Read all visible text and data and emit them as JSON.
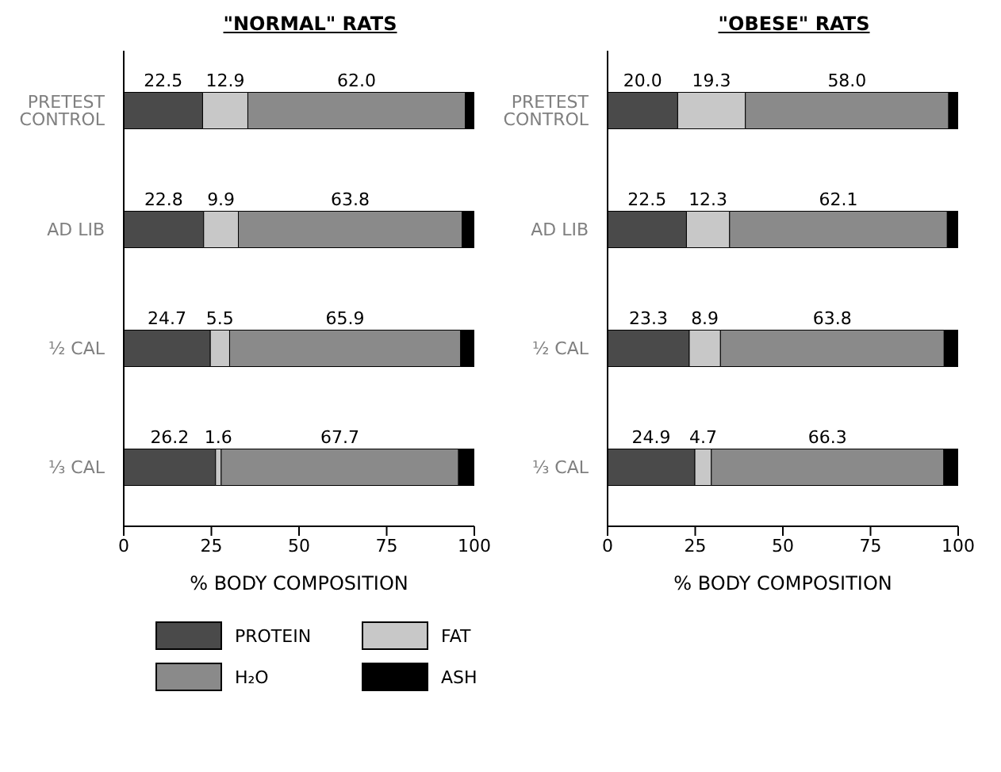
{
  "chart_data": [
    {
      "type": "bar",
      "title": "\"NORMAL\" RATS",
      "xlabel": "% BODY COMPOSITION",
      "orientation": "horizontal",
      "stacked": true,
      "categories": [
        "PRETEST CONTROL",
        "AD LIB",
        "½ CAL",
        "⅓ CAL"
      ],
      "xlim": [
        0,
        100
      ],
      "xticks": [
        0,
        25,
        50,
        75,
        100
      ],
      "grid": false,
      "legend": "bottom",
      "series": [
        {
          "name": "PROTEIN",
          "color": "#4a4a4a",
          "values": [
            22.5,
            22.8,
            24.7,
            26.2
          ],
          "value_labels": [
            "22.5",
            "22.8",
            "24.7",
            "26.2"
          ]
        },
        {
          "name": "FAT",
          "color": "#c8c8c8",
          "values": [
            12.9,
            9.9,
            5.5,
            1.6
          ],
          "value_labels": [
            "12.9",
            "9.9",
            "5.5",
            "1.6"
          ]
        },
        {
          "name": "H₂O",
          "color": "#8a8a8a",
          "values": [
            62.0,
            63.8,
            65.9,
            67.7
          ],
          "value_labels": [
            "62.0",
            "63.8",
            "65.9",
            "67.7"
          ]
        },
        {
          "name": "ASH",
          "color": "#000000",
          "values": [
            2.6,
            3.5,
            3.9,
            4.5
          ]
        }
      ]
    },
    {
      "type": "bar",
      "title": "\"OBESE\" RATS",
      "xlabel": "% BODY COMPOSITION",
      "orientation": "horizontal",
      "stacked": true,
      "categories": [
        "PRETEST CONTROL",
        "AD LIB",
        "½ CAL",
        "⅓ CAL"
      ],
      "xlim": [
        0,
        100
      ],
      "xticks": [
        0,
        25,
        50,
        75,
        100
      ],
      "grid": false,
      "series": [
        {
          "color": "#4a4a4a",
          "values": [
            20.0,
            22.5,
            23.3,
            24.9
          ],
          "value_labels": [
            "20.0",
            "22.5",
            "23.3",
            "24.9"
          ]
        },
        {
          "color": "#c8c8c8",
          "values": [
            19.3,
            12.3,
            8.9,
            4.7
          ],
          "value_labels": [
            "19.3",
            "12.3",
            "8.9",
            "4.7"
          ]
        },
        {
          "color": "#8a8a8a",
          "values": [
            58.0,
            62.1,
            63.8,
            66.3
          ],
          "value_labels": [
            "58.0",
            "62.1",
            "63.8",
            "66.3"
          ]
        },
        {
          "color": "#000000",
          "values": [
            2.7,
            3.1,
            4.0,
            4.1
          ]
        }
      ]
    }
  ]
}
